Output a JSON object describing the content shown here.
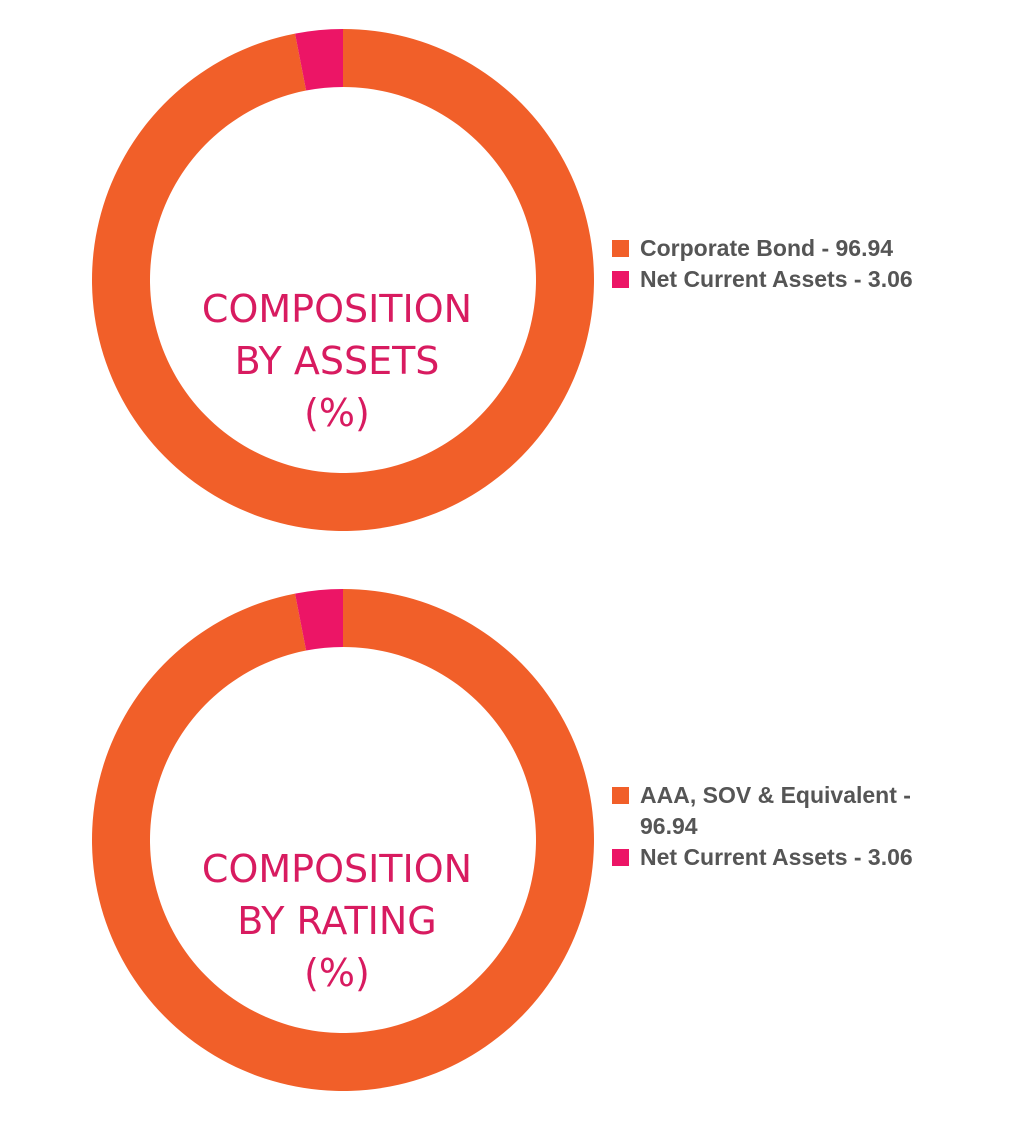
{
  "colors": {
    "orange": "#f15f29",
    "magenta": "#ec1566",
    "title": "#d81b60",
    "legend_text": "#555555"
  },
  "chart_data": [
    {
      "type": "pie",
      "center_title_lines": [
        "COMPOSITION",
        "BY ASSETS",
        "(%)"
      ],
      "slices": [
        {
          "label": "Corporate Bond - 96.94",
          "value": 96.94,
          "color": "#f15f29"
        },
        {
          "label": "Net Current Assets - 3.06",
          "value": 3.06,
          "color": "#ec1566"
        }
      ],
      "legend_placement": "right"
    },
    {
      "type": "pie",
      "center_title_lines": [
        "COMPOSITION",
        "BY RATING",
        "(%)"
      ],
      "slices": [
        {
          "label": "AAA, SOV & Equivalent - 96.94",
          "value": 96.94,
          "color": "#f15f29"
        },
        {
          "label": "Net Current Assets - 3.06",
          "value": 3.06,
          "color": "#ec1566"
        }
      ],
      "legend_placement": "right"
    }
  ]
}
